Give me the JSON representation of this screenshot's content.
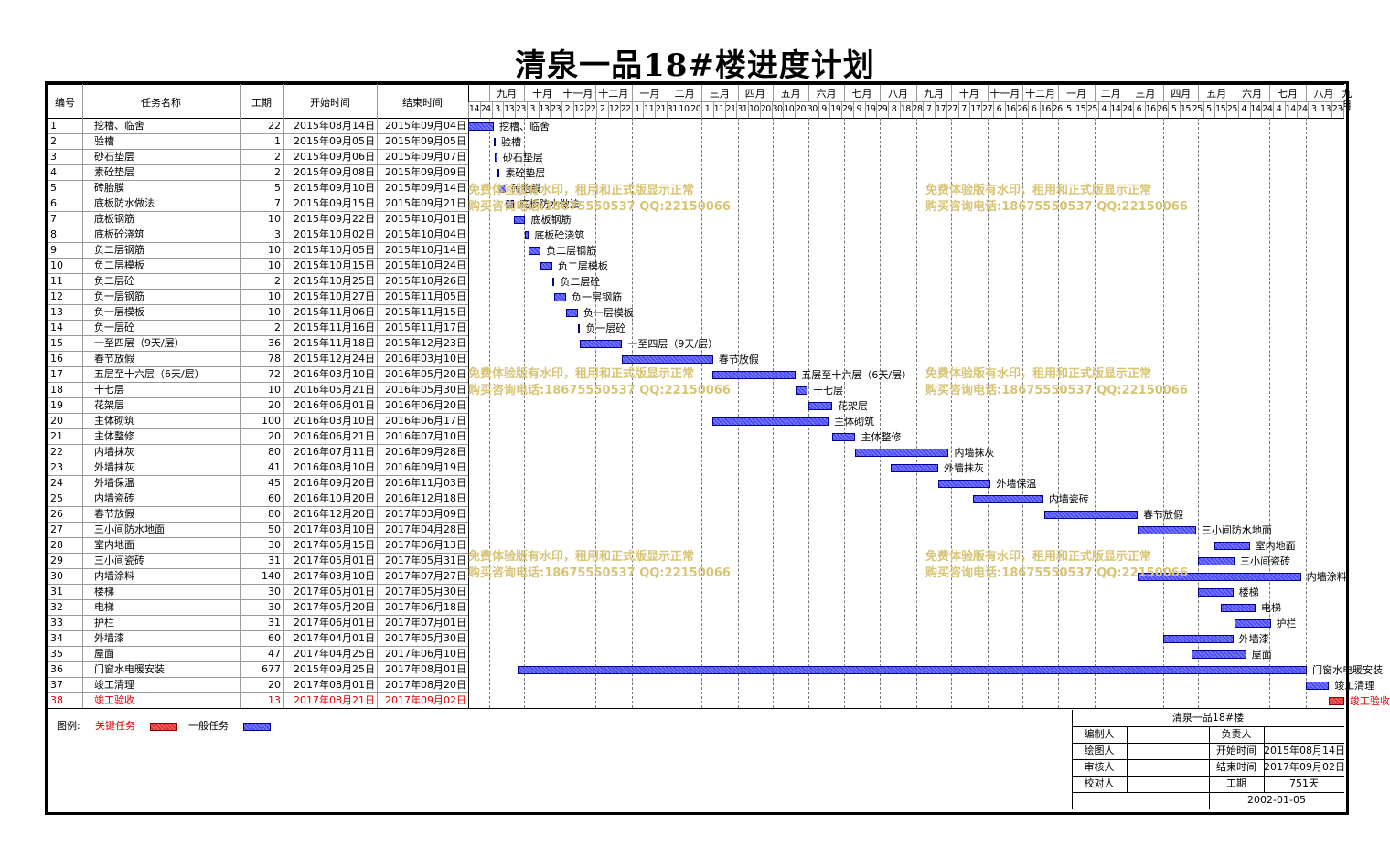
{
  "title": "清泉一品18#楼进度计划",
  "headers": {
    "id": "编号",
    "name": "任务名称",
    "duration": "工期",
    "start": "开始时间",
    "end": "结束时间"
  },
  "timeline": {
    "months": [
      "九月",
      "十月",
      "十一月",
      "十二月",
      "一月",
      "二月",
      "三月",
      "四月",
      "五月",
      "六月",
      "七月",
      "八月",
      "九月",
      "十月",
      "十一月",
      "十二月",
      "一月",
      "二月",
      "三月",
      "四月",
      "五月",
      "六月",
      "七月",
      "八月",
      "九月"
    ],
    "days": [
      "14",
      "24",
      "3",
      "13",
      "23",
      "3",
      "13",
      "23",
      "2",
      "12",
      "22",
      "2",
      "12",
      "22",
      "1",
      "11",
      "21",
      "31",
      "10",
      "20",
      "1",
      "11",
      "21",
      "31",
      "10",
      "20",
      "30",
      "10",
      "20",
      "30",
      "9",
      "19",
      "29",
      "9",
      "19",
      "29",
      "8",
      "18",
      "28",
      "7",
      "17",
      "27",
      "7",
      "17",
      "27",
      "6",
      "16",
      "26",
      "6",
      "16",
      "26",
      "5",
      "15",
      "25",
      "4",
      "14",
      "24",
      "6",
      "16",
      "26",
      "5",
      "15",
      "25",
      "5",
      "15",
      "25",
      "4",
      "14",
      "24",
      "4",
      "14",
      "24",
      "3",
      "13",
      "23",
      "2",
      "12",
      "22",
      "2"
    ]
  },
  "tasks": [
    {
      "id": "1",
      "name": "挖槽、临舍",
      "duration": "22",
      "start": "2015年08月14日",
      "end": "2015年09月04日",
      "critical": false
    },
    {
      "id": "2",
      "name": "验槽",
      "duration": "1",
      "start": "2015年09月05日",
      "end": "2015年09月05日",
      "critical": false
    },
    {
      "id": "3",
      "name": "砂石垫层",
      "duration": "2",
      "start": "2015年09月06日",
      "end": "2015年09月07日",
      "critical": false
    },
    {
      "id": "4",
      "name": "素砼垫层",
      "duration": "2",
      "start": "2015年09月08日",
      "end": "2015年09月09日",
      "critical": false
    },
    {
      "id": "5",
      "name": "砖胎膜",
      "duration": "5",
      "start": "2015年09月10日",
      "end": "2015年09月14日",
      "critical": false
    },
    {
      "id": "6",
      "name": "底板防水做法",
      "duration": "7",
      "start": "2015年09月15日",
      "end": "2015年09月21日",
      "critical": false
    },
    {
      "id": "7",
      "name": "底板钢筋",
      "duration": "10",
      "start": "2015年09月22日",
      "end": "2015年10月01日",
      "critical": false
    },
    {
      "id": "8",
      "name": "底板砼浇筑",
      "duration": "3",
      "start": "2015年10月02日",
      "end": "2015年10月04日",
      "critical": false
    },
    {
      "id": "9",
      "name": "负二层钢筋",
      "duration": "10",
      "start": "2015年10月05日",
      "end": "2015年10月14日",
      "critical": false
    },
    {
      "id": "10",
      "name": "负二层模板",
      "duration": "10",
      "start": "2015年10月15日",
      "end": "2015年10月24日",
      "critical": false
    },
    {
      "id": "11",
      "name": "负二层砼",
      "duration": "2",
      "start": "2015年10月25日",
      "end": "2015年10月26日",
      "critical": false
    },
    {
      "id": "12",
      "name": "负一层钢筋",
      "duration": "10",
      "start": "2015年10月27日",
      "end": "2015年11月05日",
      "critical": false
    },
    {
      "id": "13",
      "name": "负一层模板",
      "duration": "10",
      "start": "2015年11月06日",
      "end": "2015年11月15日",
      "critical": false
    },
    {
      "id": "14",
      "name": "负一层砼",
      "duration": "2",
      "start": "2015年11月16日",
      "end": "2015年11月17日",
      "critical": false
    },
    {
      "id": "15",
      "name": "一至四层（9天/层）",
      "duration": "36",
      "start": "2015年11月18日",
      "end": "2015年12月23日",
      "critical": false
    },
    {
      "id": "16",
      "name": "春节放假",
      "duration": "78",
      "start": "2015年12月24日",
      "end": "2016年03月10日",
      "critical": false
    },
    {
      "id": "17",
      "name": "五层至十六层（6天/层）",
      "duration": "72",
      "start": "2016年03月10日",
      "end": "2016年05月20日",
      "critical": false
    },
    {
      "id": "18",
      "name": "十七层",
      "duration": "10",
      "start": "2016年05月21日",
      "end": "2016年05月30日",
      "critical": false
    },
    {
      "id": "19",
      "name": "花架层",
      "duration": "20",
      "start": "2016年06月01日",
      "end": "2016年06月20日",
      "critical": false
    },
    {
      "id": "20",
      "name": "主体砌筑",
      "duration": "100",
      "start": "2016年03月10日",
      "end": "2016年06月17日",
      "critical": false
    },
    {
      "id": "21",
      "name": "主体整修",
      "duration": "20",
      "start": "2016年06月21日",
      "end": "2016年07月10日",
      "critical": false
    },
    {
      "id": "22",
      "name": "内墙抹灰",
      "duration": "80",
      "start": "2016年07月11日",
      "end": "2016年09月28日",
      "critical": false
    },
    {
      "id": "23",
      "name": "外墙抹灰",
      "duration": "41",
      "start": "2016年08月10日",
      "end": "2016年09月19日",
      "critical": false
    },
    {
      "id": "24",
      "name": "外墙保温",
      "duration": "45",
      "start": "2016年09月20日",
      "end": "2016年11月03日",
      "critical": false
    },
    {
      "id": "25",
      "name": "内墙瓷砖",
      "duration": "60",
      "start": "2016年10月20日",
      "end": "2016年12月18日",
      "critical": false
    },
    {
      "id": "26",
      "name": "春节放假",
      "duration": "80",
      "start": "2016年12月20日",
      "end": "2017年03月09日",
      "critical": false
    },
    {
      "id": "27",
      "name": "三小间防水地面",
      "duration": "50",
      "start": "2017年03月10日",
      "end": "2017年04月28日",
      "critical": false
    },
    {
      "id": "28",
      "name": "室内地面",
      "duration": "30",
      "start": "2017年05月15日",
      "end": "2017年06月13日",
      "critical": false
    },
    {
      "id": "29",
      "name": "三小间瓷砖",
      "duration": "31",
      "start": "2017年05月01日",
      "end": "2017年05月31日",
      "critical": false
    },
    {
      "id": "30",
      "name": "内墙涂料",
      "duration": "140",
      "start": "2017年03月10日",
      "end": "2017年07月27日",
      "critical": false
    },
    {
      "id": "31",
      "name": "楼梯",
      "duration": "30",
      "start": "2017年05月01日",
      "end": "2017年05月30日",
      "critical": false
    },
    {
      "id": "32",
      "name": "电梯",
      "duration": "30",
      "start": "2017年05月20日",
      "end": "2017年06月18日",
      "critical": false
    },
    {
      "id": "33",
      "name": "护栏",
      "duration": "31",
      "start": "2017年06月01日",
      "end": "2017年07月01日",
      "critical": false
    },
    {
      "id": "34",
      "name": "外墙漆",
      "duration": "60",
      "start": "2017年04月01日",
      "end": "2017年05月30日",
      "critical": false
    },
    {
      "id": "35",
      "name": "屋面",
      "duration": "47",
      "start": "2017年04月25日",
      "end": "2017年06月10日",
      "critical": false
    },
    {
      "id": "36",
      "name": "门窗水电暖安装",
      "duration": "677",
      "start": "2015年09月25日",
      "end": "2017年08月01日",
      "critical": false
    },
    {
      "id": "37",
      "name": "竣工清理",
      "duration": "20",
      "start": "2017年08月01日",
      "end": "2017年08月20日",
      "critical": false
    },
    {
      "id": "38",
      "name": "竣工验收",
      "duration": "13",
      "start": "2017年08月21日",
      "end": "2017年09月02日",
      "critical": true
    }
  ],
  "watermark": {
    "line1": "免费体验版有水印，租用和正式版显示正常",
    "line2": "购买咨询电话:18675550537 QQ:22150066"
  },
  "legend": {
    "label": "图例:",
    "critical": "关键任务",
    "normal": "一般任务"
  },
  "colors": {
    "normal_bar": "#4a4aff",
    "critical_bar": "#e03030",
    "critical_text": "#e00000",
    "watermark": "#d8c477"
  },
  "info_block": {
    "project": "清泉一品18#楼",
    "editor_label": "编制人",
    "owner_label": "负责人",
    "drawer_label": "绘图人",
    "start_label": "开始时间",
    "start_value": "2015年08月14日",
    "reviewer_label": "审核人",
    "end_label": "结束时间",
    "end_value": "2017年09月02日",
    "checker_label": "校对人",
    "duration_label": "工期",
    "duration_value": "751天",
    "date": "2002-01-05"
  }
}
